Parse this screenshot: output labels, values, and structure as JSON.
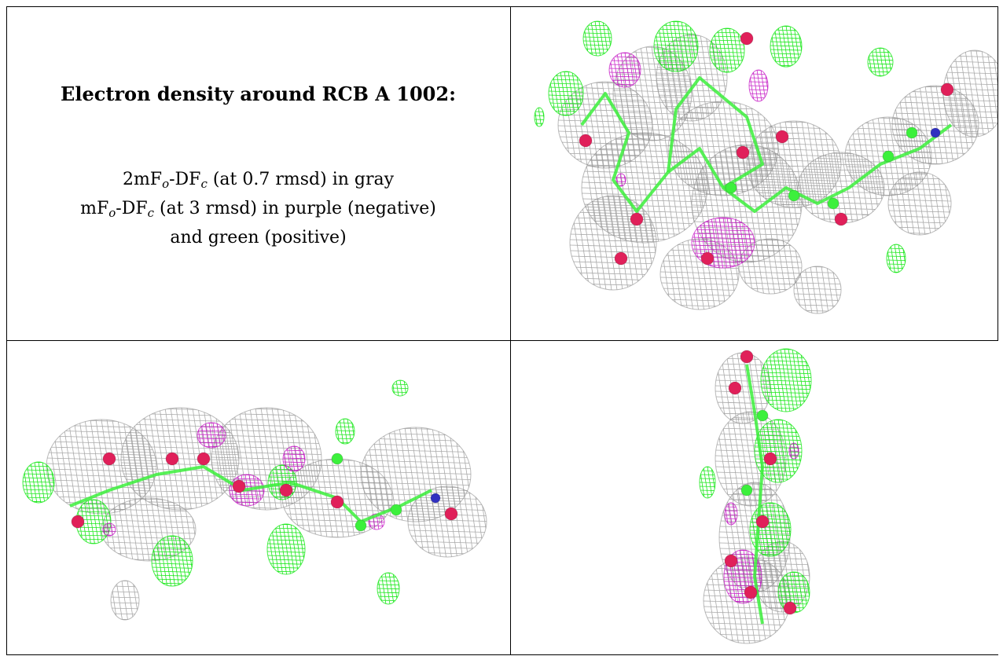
{
  "caption": {
    "title": "Electron density around RCB A 1002:",
    "line1": {
      "pre": "2mF",
      "sub1": "o",
      "mid": "-DF",
      "sub2": "c",
      "post": " (at 0.7 rmsd) in gray"
    },
    "line2": {
      "pre": "mF",
      "sub1": "o",
      "mid": "-DF",
      "sub2": "c",
      "post": " (at 3 rmsd) in purple (negative)"
    },
    "line3": "and green (positive)"
  },
  "colors": {
    "map_2fofc": "#8c8c8c",
    "map_positive": "#00e600",
    "map_negative": "#c000c0",
    "atom_carbon": "#3cf03c",
    "atom_oxygen": "#e0205a",
    "atom_nitrogen": "#3030c0",
    "grid_lines": "#000000"
  },
  "panels": [
    {
      "view": "top-right"
    },
    {
      "view": "bottom-left"
    },
    {
      "view": "bottom-right"
    }
  ]
}
